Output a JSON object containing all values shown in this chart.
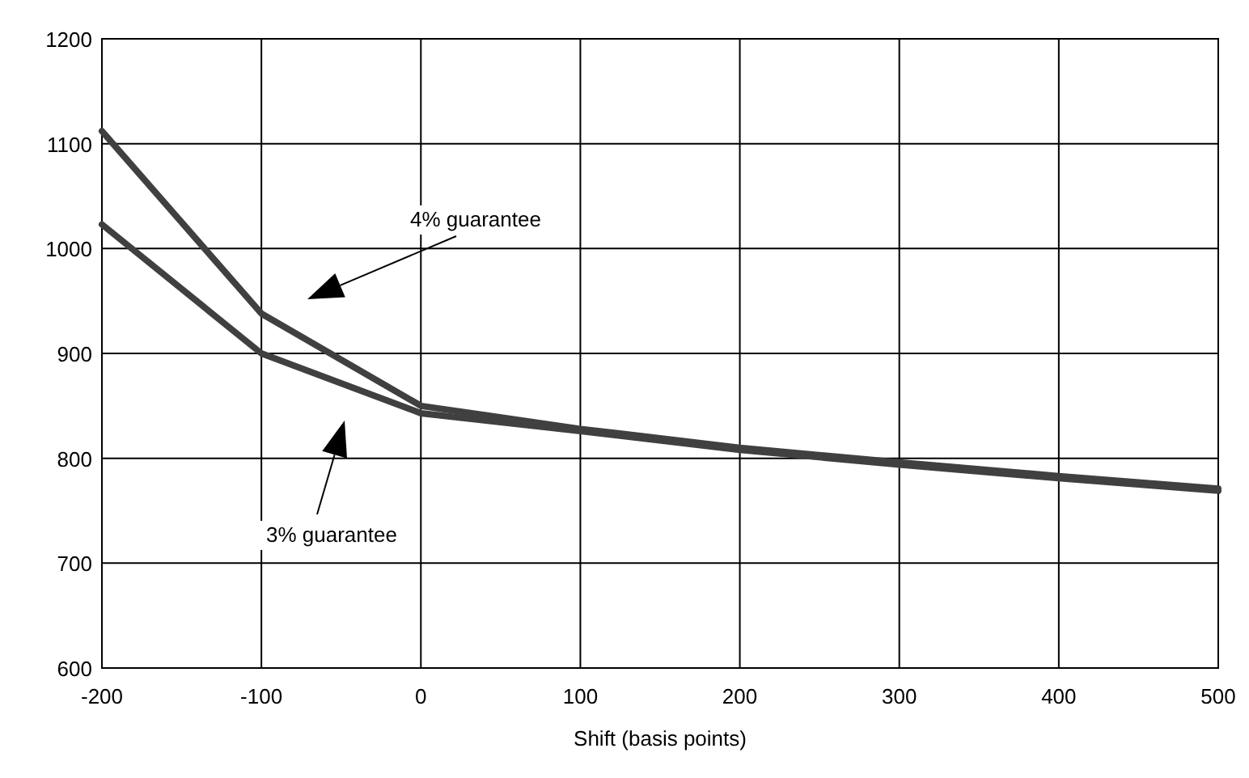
{
  "chart_data": {
    "type": "line",
    "xlabel": "Shift (basis points)",
    "x": [
      -200,
      -100,
      0,
      100,
      200,
      300,
      400,
      500
    ],
    "series": [
      {
        "color": "#404040",
        "values": [
          1112,
          938,
          850,
          828,
          810,
          796,
          783,
          771
        ]
      },
      {
        "color": "#404040",
        "values": [
          1023,
          900,
          843,
          826,
          808,
          794,
          781,
          769
        ]
      }
    ],
    "xlim": [
      -200,
      500
    ],
    "xticks": [
      -200,
      -100,
      0,
      100,
      200,
      300,
      400,
      500
    ],
    "ylim": [
      600,
      1200
    ],
    "yticks": [
      600,
      700,
      800,
      900,
      1000,
      1100,
      1200
    ],
    "grid": true,
    "marker": "none",
    "line_style": "solid",
    "annotations": [
      "4% guarantee",
      "3% guarantee"
    ]
  }
}
